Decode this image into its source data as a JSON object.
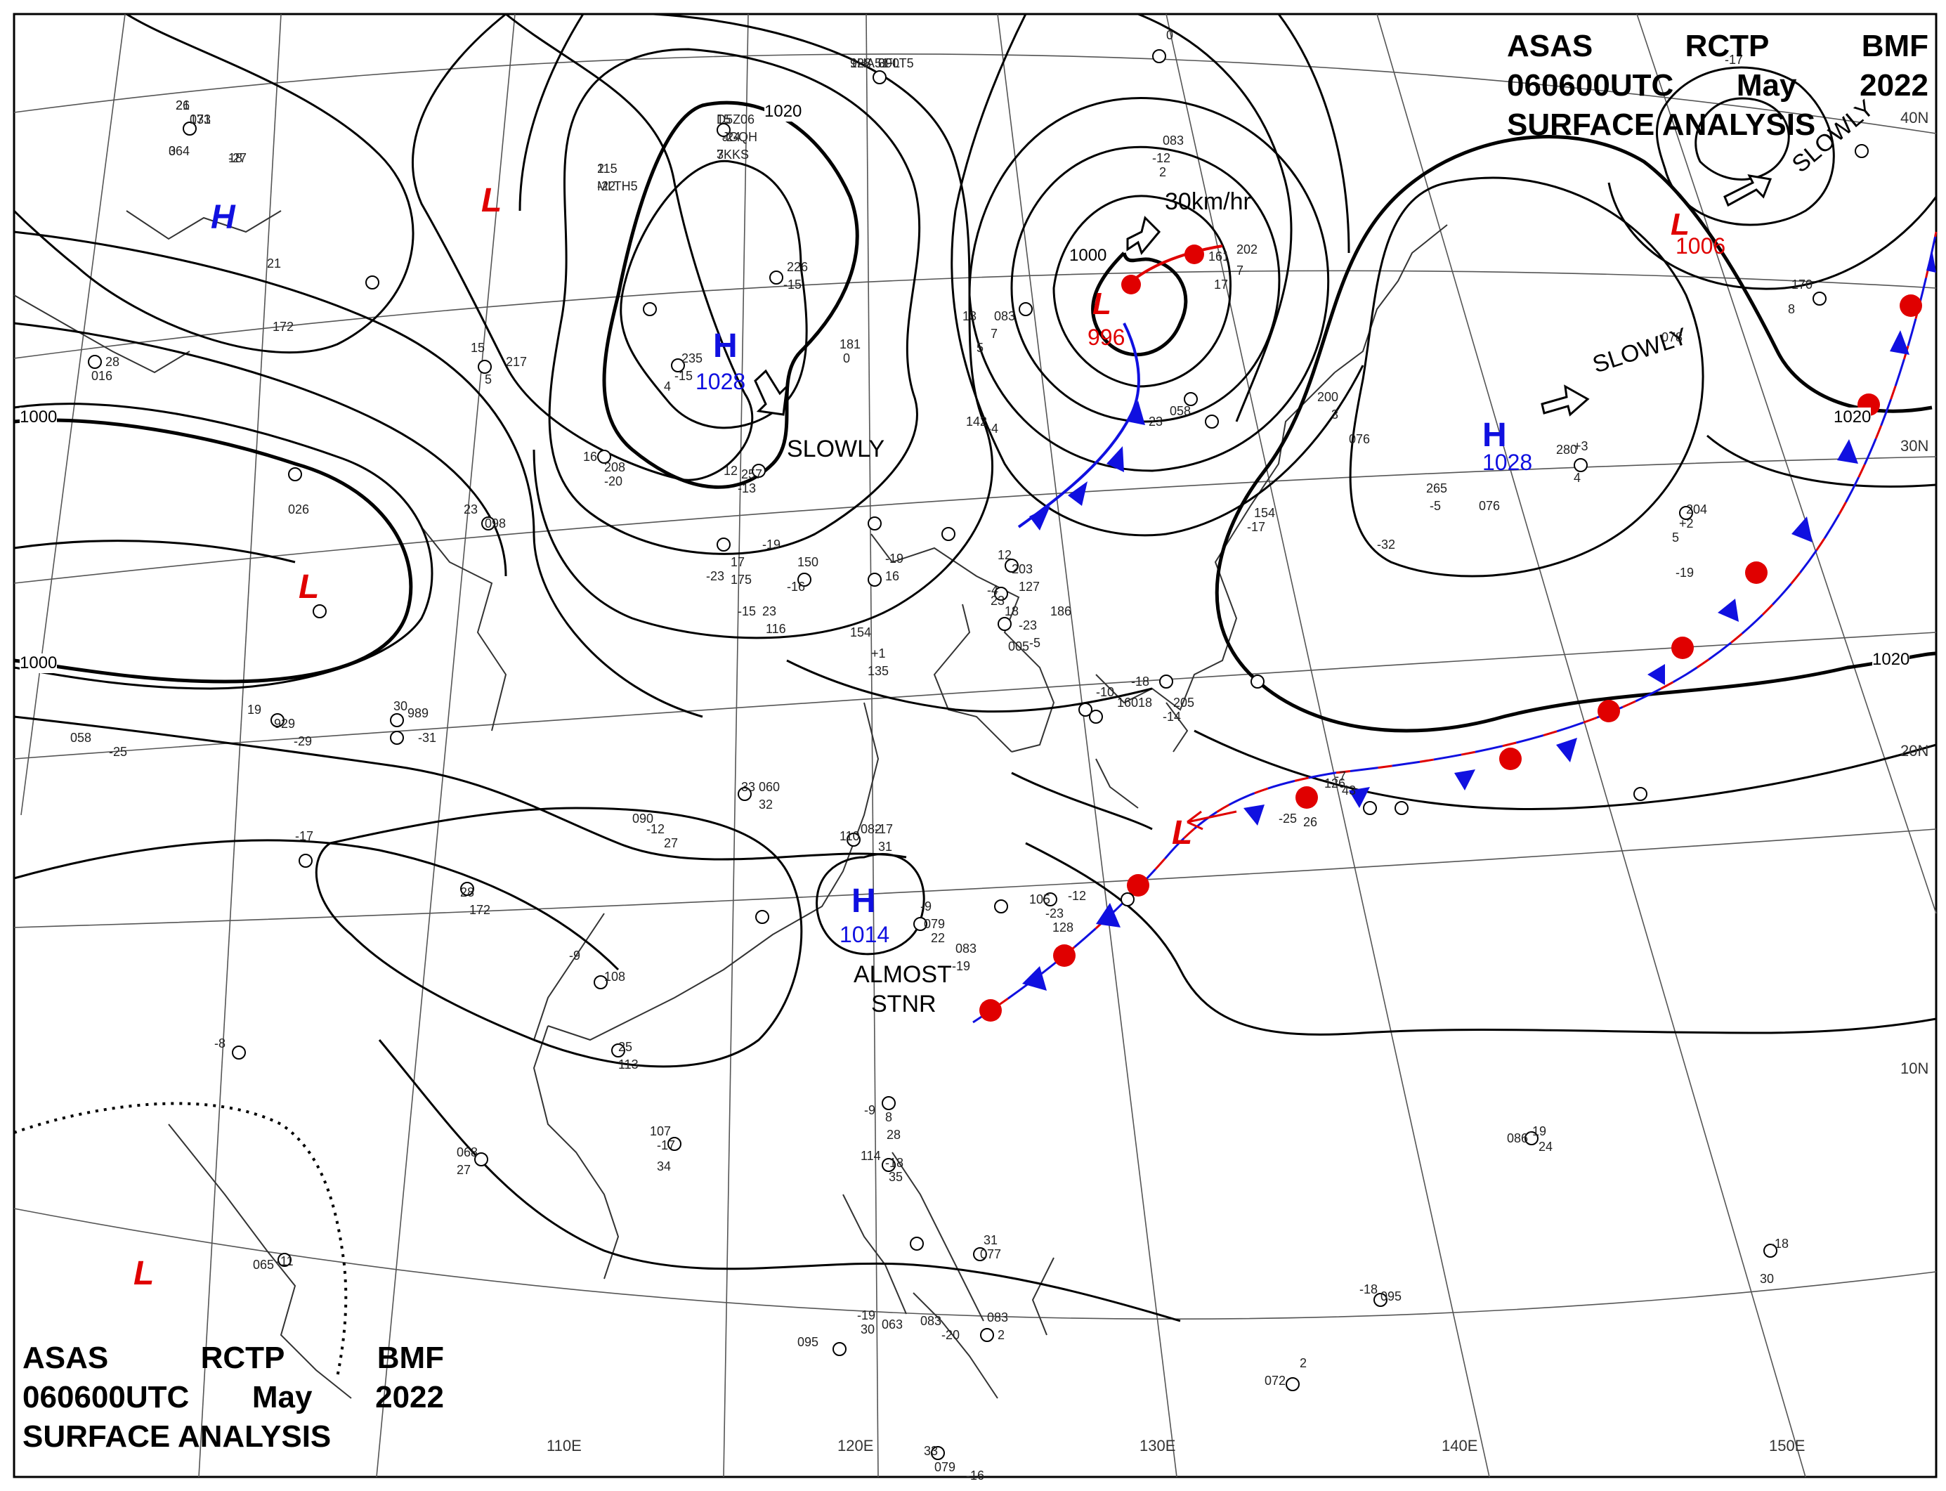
{
  "header": {
    "agency": [
      "ASAS",
      "RCTP",
      "BMF"
    ],
    "time": [
      "060600UTC",
      "May",
      "2022"
    ],
    "product": "SURFACE ANALYSIS"
  },
  "colors": {
    "high": "#1010e0",
    "low": "#e00000",
    "isobar": "#000000",
    "coast": "#333333",
    "grid": "#555555",
    "cold_front": "#1010e0",
    "warm_front": "#e00000"
  },
  "grid_labels": {
    "lon": [
      "110E",
      "120E",
      "130E",
      "140E",
      "150E"
    ],
    "lat": [
      "40N",
      "30N",
      "20N",
      "10N"
    ]
  },
  "isobar_labels": [
    "1000",
    "1000",
    "1020",
    "1000",
    "1020",
    "1020"
  ],
  "pressure_systems": [
    {
      "type": "H",
      "value": ""
    },
    {
      "type": "L",
      "value": ""
    },
    {
      "type": "H",
      "value": "1028"
    },
    {
      "type": "L",
      "value": "996"
    },
    {
      "type": "L",
      "value": "1006"
    },
    {
      "type": "H",
      "value": "1028"
    },
    {
      "type": "L",
      "value": ""
    },
    {
      "type": "H",
      "value": "1014"
    },
    {
      "type": "L",
      "value": ""
    },
    {
      "type": "L",
      "value": ""
    }
  ],
  "motion_labels": [
    "SLOWLY",
    "30km/hr",
    "SLOWLY",
    "SLOWLY",
    "ALMOST",
    "STNR"
  ],
  "station_text": [
    "21",
    "133",
    "3",
    "18",
    "115",
    "-22",
    "15",
    "-24",
    "3",
    "128",
    "090",
    "0",
    "083",
    "-12",
    "2",
    "235",
    "-15",
    "4",
    "226",
    "-15",
    "181",
    "0",
    "13",
    "083",
    "7",
    "5",
    "161",
    "202",
    "7",
    "17",
    "21",
    "172",
    "28",
    "016",
    "15",
    "217",
    "5",
    "16",
    "208",
    "-20",
    "12",
    "257",
    "-13",
    "142",
    "-4",
    "058",
    "23",
    "200",
    "3",
    "280",
    "+3",
    "4",
    "265",
    "-5",
    "204",
    "+2",
    "5",
    "170",
    "8",
    "026",
    "23",
    "098",
    "-19",
    "16",
    "154",
    "-23",
    "17",
    "175",
    "-19",
    "150",
    "-16",
    "12",
    "203",
    "-4",
    "23",
    "127",
    "18",
    "-23",
    "154",
    "-17",
    "186",
    "-5",
    "005",
    "-15",
    "23",
    "116",
    "+1",
    "135",
    "-10",
    "160",
    "-18",
    "18",
    "205",
    "-14",
    "19",
    "929",
    "-29",
    "989",
    "-31",
    "30",
    "058",
    "-25",
    "33",
    "060",
    "32",
    "090",
    "-12",
    "27",
    "082",
    "-17",
    "31",
    "110",
    "-25",
    "26",
    "126",
    "-7",
    "43",
    "-17",
    "28",
    "172",
    "-9",
    "079",
    "22",
    "083",
    "-19",
    "105",
    "-23",
    "128",
    "-12",
    "-9",
    "108",
    "-8",
    "25",
    "113",
    "-9",
    "8",
    "28",
    "114",
    "-18",
    "35",
    "068",
    "27",
    "107",
    "-17",
    "34",
    "086",
    "-19",
    "24",
    "065",
    "-11",
    "31",
    "077",
    "-18",
    "095",
    "-18",
    "30",
    "095",
    "-19",
    "30",
    "063",
    "083",
    "-20",
    "083",
    "2",
    "072",
    "2",
    "33",
    "079",
    "-16",
    "076",
    "-32",
    "076",
    "-19",
    "078",
    "-17",
    "26",
    "071",
    "064",
    "-27",
    "2",
    "MLTH5",
    "D5Z06",
    "JGQH",
    "7KKS",
    "9HA51",
    "3FLT5"
  ]
}
